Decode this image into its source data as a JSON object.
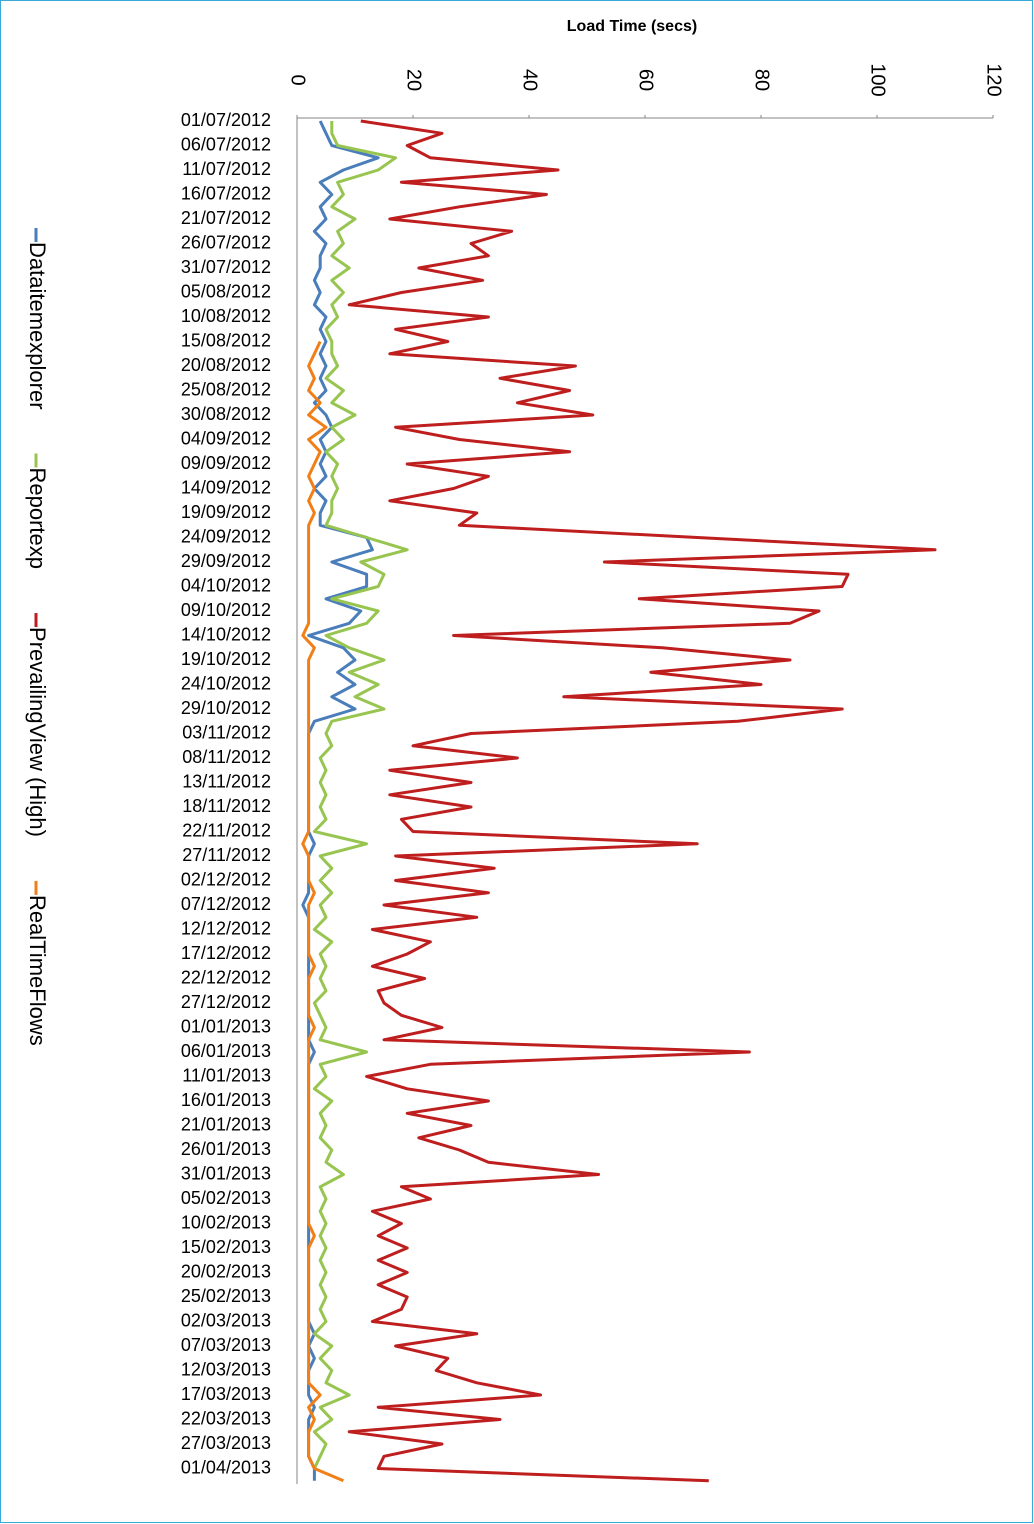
{
  "chart_data": {
    "type": "line",
    "orientation": "vertical-categories",
    "title": "Load Time (secs)",
    "categories": [
      "01/07/2012",
      null,
      "06/07/2012",
      null,
      "11/07/2012",
      null,
      "16/07/2012",
      null,
      "21/07/2012",
      null,
      "26/07/2012",
      null,
      "31/07/2012",
      null,
      "05/08/2012",
      null,
      "10/08/2012",
      null,
      "15/08/2012",
      null,
      "20/08/2012",
      null,
      "25/08/2012",
      null,
      "30/08/2012",
      null,
      "04/09/2012",
      null,
      "09/09/2012",
      null,
      "14/09/2012",
      null,
      "19/09/2012",
      null,
      "24/09/2012",
      null,
      "29/09/2012",
      null,
      "04/10/2012",
      null,
      "09/10/2012",
      null,
      "14/10/2012",
      null,
      "19/10/2012",
      null,
      "24/10/2012",
      null,
      "29/10/2012",
      null,
      "03/11/2012",
      null,
      "08/11/2012",
      null,
      "13/11/2012",
      null,
      "18/11/2012",
      null,
      "22/11/2012",
      null,
      "27/11/2012",
      null,
      "02/12/2012",
      null,
      "07/12/2012",
      null,
      "12/12/2012",
      null,
      "17/12/2012",
      null,
      "22/12/2012",
      null,
      "27/12/2012",
      null,
      "01/01/2013",
      null,
      "06/01/2013",
      null,
      "11/01/2013",
      null,
      "16/01/2013",
      null,
      "21/01/2013",
      null,
      "26/01/2013",
      null,
      "31/01/2013",
      null,
      "05/02/2013",
      null,
      "10/02/2013",
      null,
      "15/02/2013",
      null,
      "20/02/2013",
      null,
      "25/02/2013",
      null,
      "02/03/2013",
      null,
      "07/03/2013",
      null,
      "12/03/2013",
      null,
      "17/03/2013",
      null,
      "22/03/2013",
      null,
      "27/03/2013",
      null,
      "01/04/2013",
      null
    ],
    "series": [
      {
        "name": "Dataitemexplorer",
        "color": "#4a7ebb",
        "values": [
          4,
          5,
          6,
          14,
          8,
          4,
          6,
          4,
          5,
          3,
          5,
          4,
          4,
          3,
          4,
          3,
          5,
          4,
          5,
          4,
          5,
          4,
          5,
          3,
          5,
          6,
          4,
          5,
          4,
          5,
          3,
          5,
          4,
          4,
          12,
          13,
          6,
          12,
          12,
          5,
          11,
          9,
          2,
          8,
          10,
          7,
          10,
          6,
          10,
          3,
          2,
          2,
          2,
          2,
          2,
          2,
          2,
          2,
          2,
          3,
          2,
          2,
          2,
          2,
          1,
          2,
          2,
          2,
          2,
          2,
          2,
          2,
          2,
          2,
          2,
          2,
          3,
          2,
          2,
          2,
          2,
          2,
          2,
          2,
          2,
          2,
          2,
          2,
          2,
          2,
          2,
          2,
          2,
          2,
          2,
          2,
          2,
          2,
          2,
          3,
          2,
          3,
          2,
          2,
          2,
          3,
          2,
          2,
          2,
          2,
          3,
          3
        ]
      },
      {
        "name": "Reportexp",
        "color": "#98c550",
        "values": [
          6,
          6,
          7,
          17,
          14,
          7,
          8,
          6,
          10,
          7,
          8,
          6,
          9,
          6,
          8,
          6,
          7,
          5,
          6,
          6,
          7,
          5,
          8,
          6,
          10,
          6,
          8,
          5,
          7,
          6,
          7,
          6,
          6,
          5,
          12,
          19,
          11,
          15,
          14,
          6,
          14,
          12,
          5,
          9,
          15,
          9,
          14,
          10,
          15,
          6,
          5,
          6,
          4,
          5,
          4,
          5,
          4,
          5,
          3,
          12,
          4,
          6,
          4,
          6,
          4,
          5,
          3,
          6,
          4,
          5,
          4,
          5,
          3,
          4,
          5,
          4,
          12,
          4,
          5,
          3,
          6,
          4,
          5,
          4,
          6,
          5,
          8,
          4,
          5,
          4,
          5,
          4,
          5,
          4,
          5,
          4,
          5,
          4,
          5,
          3,
          6,
          4,
          6,
          5,
          9,
          4,
          6,
          3,
          5,
          4,
          3,
          null
        ]
      },
      {
        "name": "PrevailingView (High)",
        "color": "#be1e1e",
        "values": [
          11,
          25,
          19,
          23,
          45,
          18,
          43,
          28,
          16,
          37,
          30,
          33,
          21,
          32,
          18,
          9,
          33,
          17,
          26,
          16,
          48,
          35,
          47,
          38,
          51,
          17,
          28,
          47,
          19,
          33,
          27,
          16,
          31,
          28,
          69,
          110,
          53,
          95,
          94,
          59,
          90,
          85,
          27,
          63,
          85,
          61,
          80,
          46,
          94,
          76,
          30,
          20,
          38,
          16,
          30,
          16,
          30,
          18,
          20,
          69,
          17,
          34,
          17,
          33,
          15,
          31,
          13,
          23,
          19,
          13,
          22,
          14,
          15,
          18,
          25,
          15,
          78,
          23,
          12,
          19,
          33,
          19,
          30,
          21,
          28,
          33,
          52,
          18,
          23,
          13,
          18,
          14,
          19,
          14,
          19,
          14,
          19,
          18,
          13,
          31,
          17,
          26,
          24,
          31,
          42,
          14,
          35,
          9,
          25,
          15,
          14,
          71
        ]
      },
      {
        "name": "RealTimeFlows",
        "color": "#f07f18",
        "values": [
          null,
          null,
          null,
          null,
          null,
          null,
          null,
          null,
          null,
          null,
          null,
          null,
          null,
          null,
          null,
          null,
          null,
          null,
          4,
          3,
          2,
          3,
          2,
          4,
          2,
          5,
          2,
          4,
          3,
          2,
          3,
          2,
          3,
          2,
          2,
          2,
          2,
          2,
          2,
          2,
          2,
          2,
          1,
          3,
          2,
          2,
          2,
          2,
          2,
          2,
          2,
          2,
          2,
          2,
          2,
          2,
          2,
          2,
          2,
          1,
          2,
          2,
          2,
          3,
          2,
          2,
          2,
          2,
          2,
          3,
          2,
          2,
          2,
          2,
          3,
          2,
          2,
          2,
          2,
          2,
          2,
          2,
          2,
          2,
          2,
          2,
          2,
          2,
          2,
          2,
          2,
          3,
          2,
          2,
          2,
          2,
          2,
          2,
          2,
          2,
          2,
          2,
          2,
          2,
          4,
          2,
          3,
          2,
          2,
          2,
          3,
          8
        ]
      }
    ],
    "ylim": [
      0,
      120
    ],
    "yticks": [
      0,
      20,
      40,
      60,
      80,
      100,
      120
    ],
    "grid": false,
    "legend": "left"
  }
}
